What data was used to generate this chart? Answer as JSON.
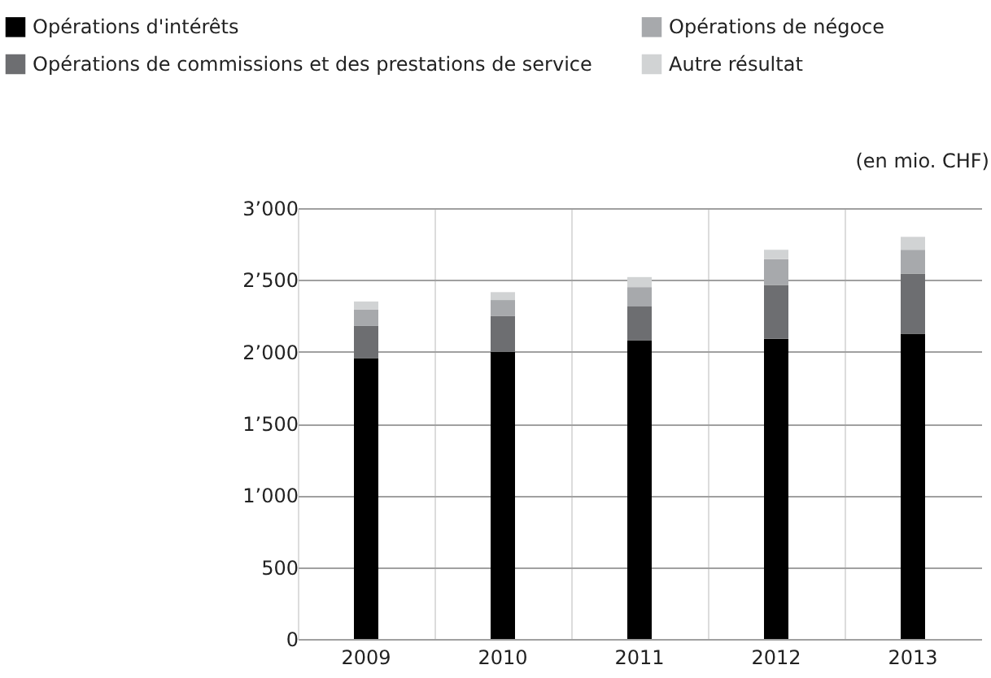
{
  "chart_data": {
    "type": "bar",
    "stacked": true,
    "categories": [
      "2009",
      "2010",
      "2011",
      "2012",
      "2013"
    ],
    "series": [
      {
        "name": "Opérations d'intérêts",
        "color": "#000000",
        "values": [
          1955,
          2000,
          2080,
          2090,
          2125
        ]
      },
      {
        "name": "Opérations de commissions et des prestations de service",
        "color": "#6d6e71",
        "values": [
          225,
          250,
          235,
          375,
          420
        ]
      },
      {
        "name": "Opérations de négoce",
        "color": "#a7a9ac",
        "values": [
          115,
          110,
          135,
          180,
          165
        ]
      },
      {
        "name": "Autre résultat",
        "color": "#d1d3d4",
        "values": [
          55,
          55,
          70,
          65,
          90
        ]
      }
    ],
    "ylim": [
      0,
      3000
    ],
    "yticks": [
      {
        "value": 0,
        "label": "0"
      },
      {
        "value": 500,
        "label": "500"
      },
      {
        "value": 1000,
        "label": "1’000"
      },
      {
        "value": 1500,
        "label": "1’500"
      },
      {
        "value": 2000,
        "label": "2’000"
      },
      {
        "value": 2500,
        "label": "2’500"
      },
      {
        "value": 3000,
        "label": "3’000"
      }
    ],
    "grid": true,
    "legend": "top",
    "annotations": [
      "(en mio. CHF)"
    ]
  }
}
